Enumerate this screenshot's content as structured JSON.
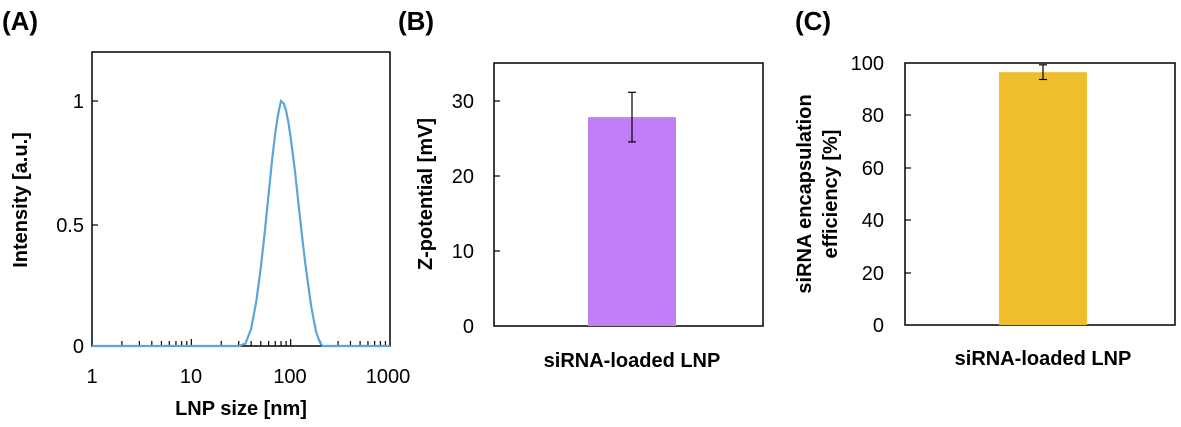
{
  "chart_data": [
    {
      "panel_label": "(A)",
      "type": "line",
      "xscale": "log",
      "xlim": [
        1,
        1000
      ],
      "ylim": [
        0,
        1.2
      ],
      "xlabel": "LNP size [nm]",
      "ylabel": "Intensity [a.u.]",
      "xtick_labels": [
        "1",
        "10",
        "100",
        "1000"
      ],
      "ytick_labels": [
        "0",
        "0.5",
        "1"
      ],
      "series": [
        {
          "name": "siRNA-loaded LNP",
          "color": "#5aa6d8",
          "x": [
            1,
            10,
            30,
            35,
            40,
            45,
            50,
            55,
            60,
            65,
            70,
            75,
            80,
            85,
            90,
            95,
            100,
            110,
            120,
            130,
            140,
            150,
            160,
            170,
            180,
            190,
            200,
            210,
            220,
            1000
          ],
          "y": [
            0,
            0,
            0,
            0.01,
            0.07,
            0.18,
            0.32,
            0.47,
            0.62,
            0.76,
            0.87,
            0.95,
            1.0,
            0.99,
            0.96,
            0.91,
            0.85,
            0.72,
            0.58,
            0.45,
            0.34,
            0.25,
            0.17,
            0.11,
            0.06,
            0.03,
            0.01,
            0,
            0,
            0
          ]
        }
      ]
    },
    {
      "panel_label": "(B)",
      "type": "bar",
      "categories": [
        "siRNA-loaded LNP"
      ],
      "values": [
        27.8
      ],
      "errors": [
        3.3
      ],
      "ylim": [
        0,
        35
      ],
      "ytick_labels": [
        "0",
        "10",
        "20",
        "30"
      ],
      "xlabel": "",
      "ylabel": "Z-potential [mV]",
      "color": "#c07ef8"
    },
    {
      "panel_label": "(C)",
      "type": "bar",
      "categories": [
        "siRNA-loaded LNP"
      ],
      "values": [
        96.5
      ],
      "errors": [
        2.8
      ],
      "ylim": [
        0,
        100
      ],
      "ytick_labels": [
        "0",
        "20",
        "40",
        "60",
        "80",
        "100"
      ],
      "xlabel": "",
      "ylabel": "siRNA encapsulation efficiency [%]",
      "ylabel_lines": [
        "siRNA encapsulation",
        "efficiency [%]"
      ],
      "color": "#efbe2f"
    }
  ]
}
